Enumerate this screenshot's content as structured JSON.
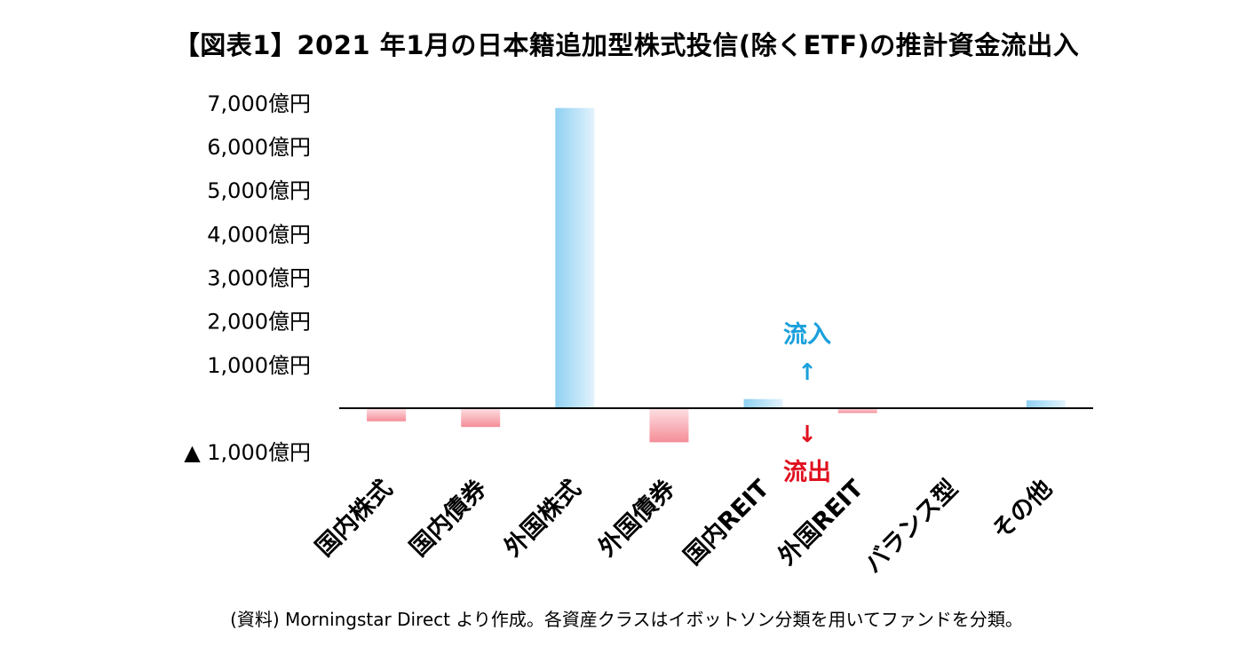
{
  "title": "【図表1】2021 年1月の日本籍追加型株式投信(除くETF)の推計資金流出入",
  "source": "(資料) Morningstar Direct より作成。各資産クラスはイボットソン分類を用いてファンドを分類。",
  "colors": {
    "inflow": "#8fd0f2",
    "outflow": "#f58d98",
    "inflow_text": "#1aa0dc",
    "outflow_text": "#e0101f"
  },
  "annotations": {
    "inflow_label": "流入",
    "inflow_arrow": "↑",
    "outflow_label": "流出",
    "outflow_arrow": "↓"
  },
  "chart_data": {
    "type": "bar",
    "title": "【図表1】2021 年1月の日本籍追加型株式投信(除くETF)の推計資金流出入",
    "categories": [
      "国内株式",
      "国内債券",
      "外国株式",
      "外国債券",
      "国内REIT",
      "外国REIT",
      "バランス型",
      "その他"
    ],
    "values": [
      -300,
      -430,
      6880,
      -780,
      210,
      -110,
      0,
      180
    ],
    "unit": "億円",
    "ylim": [
      -1000,
      7000
    ],
    "y_ticks": [
      -1000,
      1000,
      2000,
      3000,
      4000,
      5000,
      6000,
      7000
    ],
    "y_tick_labels": [
      "▲ 1,000億円",
      "1,000億円",
      "2,000億円",
      "3,000億円",
      "4,000億円",
      "5,000億円",
      "6,000億円",
      "7,000億円"
    ],
    "grid": false,
    "legend": "none"
  }
}
